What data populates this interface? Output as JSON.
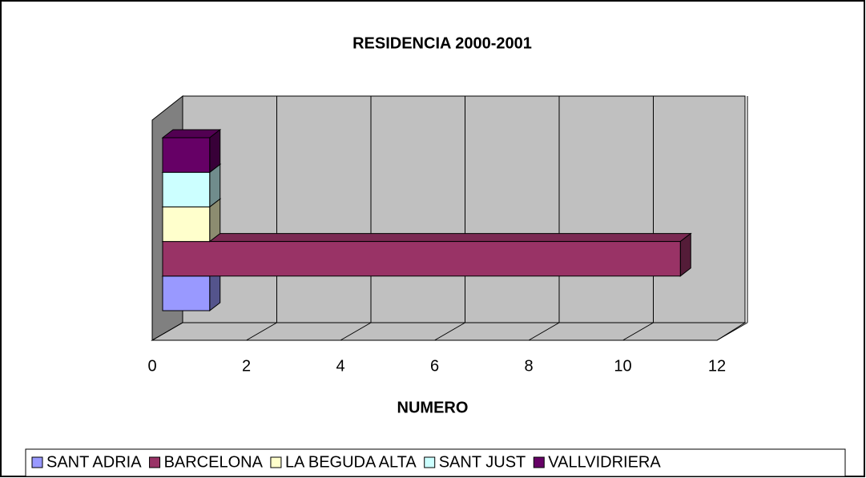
{
  "chart_data": {
    "type": "bar",
    "orientation": "horizontal",
    "title": "RESIDENCIA 2000-2001",
    "xlabel": "NUMERO",
    "series": [
      {
        "name": "SANT ADRIA",
        "color": "#9999ff",
        "values": [
          1
        ]
      },
      {
        "name": "BARCELONA",
        "color": "#993366",
        "values": [
          11
        ]
      },
      {
        "name": "LA BEGUDA ALTA",
        "color": "#ffffcc",
        "values": [
          1
        ]
      },
      {
        "name": "SANT JUST",
        "color": "#ccffff",
        "values": [
          1
        ]
      },
      {
        "name": "VALLVIDRIERA",
        "color": "#660066",
        "values": [
          1
        ]
      }
    ],
    "xlim": [
      0,
      12
    ],
    "xticks": [
      0,
      2,
      4,
      6,
      8,
      10,
      12
    ],
    "grid": true,
    "legend": "bottom"
  }
}
